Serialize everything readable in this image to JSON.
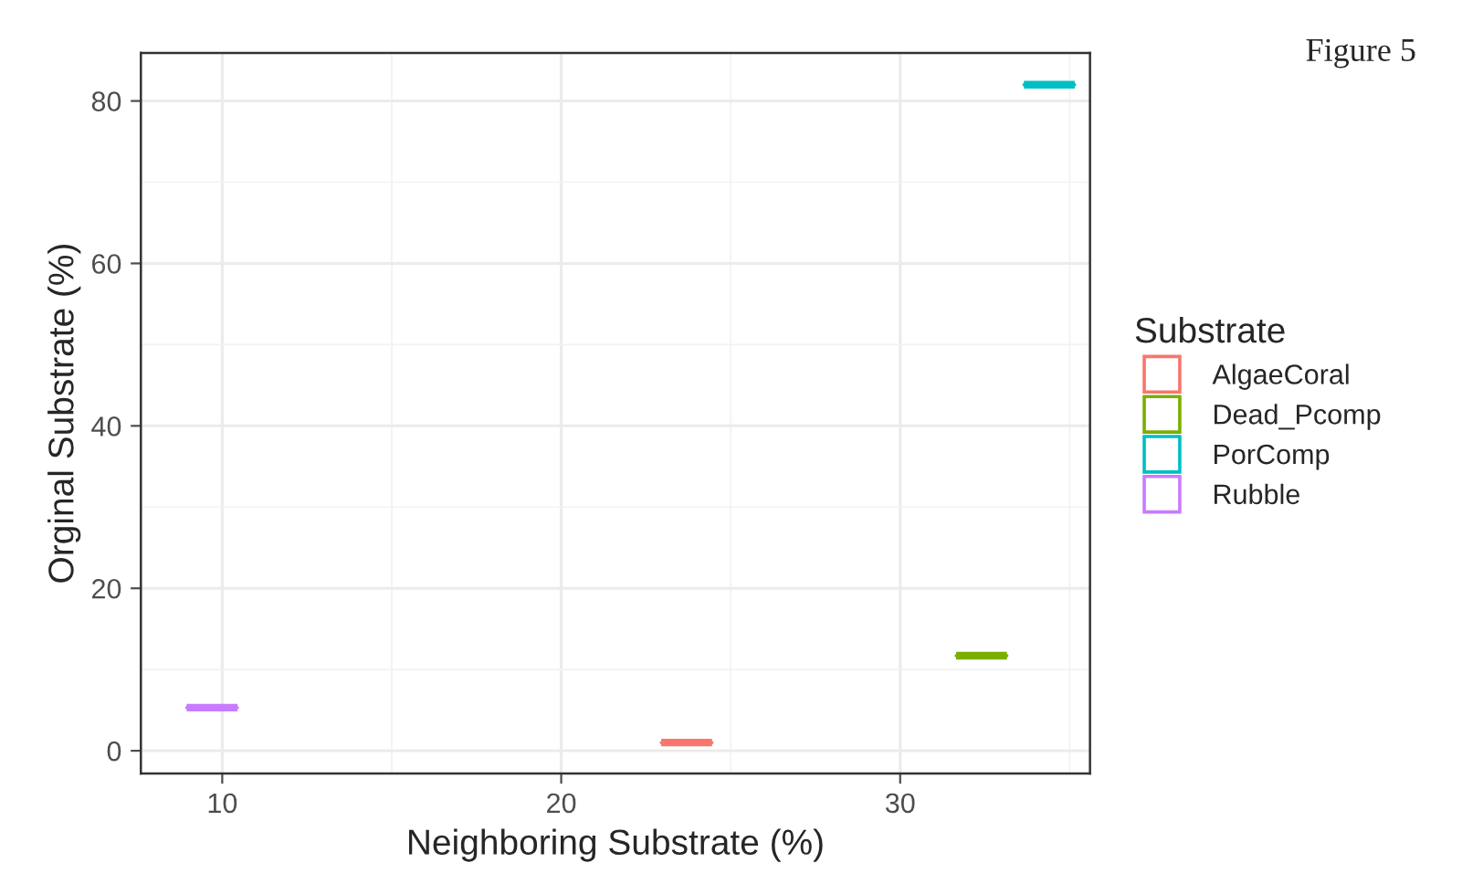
{
  "chart_data": {
    "type": "box",
    "xlabel": "Neighboring Substrate (%)",
    "ylabel": "Orginal Substrate (%)",
    "legend_title": "Substrate",
    "annotations": [
      "Figure 5"
    ],
    "series": [
      {
        "name": "AlgaeCoral",
        "color": "#f8766d",
        "x": [
          23.7
        ],
        "boxes": [
          {
            "low": 1.0,
            "q1": 1.0,
            "median": 1.0,
            "q3": 1.0,
            "high": 1.0
          }
        ]
      },
      {
        "name": "Dead_Pcomp",
        "color": "#7cae00",
        "x": [
          32.4
        ],
        "boxes": [
          {
            "low": 11.7,
            "q1": 11.7,
            "median": 11.7,
            "q3": 11.7,
            "high": 11.7
          }
        ]
      },
      {
        "name": "PorComp",
        "color": "#00bfc4",
        "x": [
          34.4
        ],
        "boxes": [
          {
            "low": 82.0,
            "q1": 82.0,
            "median": 82.0,
            "q3": 82.0,
            "high": 82.0
          }
        ]
      },
      {
        "name": "Rubble",
        "color": "#c77cff",
        "x": [
          9.7
        ],
        "boxes": [
          {
            "low": 5.3,
            "q1": 5.3,
            "median": 5.3,
            "q3": 5.3,
            "high": 5.3
          }
        ]
      }
    ],
    "xlim": [
      7.6,
      35.6
    ],
    "xticks": [
      10,
      20,
      30
    ],
    "ylim": [
      -2.8,
      85.9
    ],
    "yticks": [
      0,
      20,
      40,
      60,
      80
    ],
    "grid": true,
    "legend": "right"
  }
}
